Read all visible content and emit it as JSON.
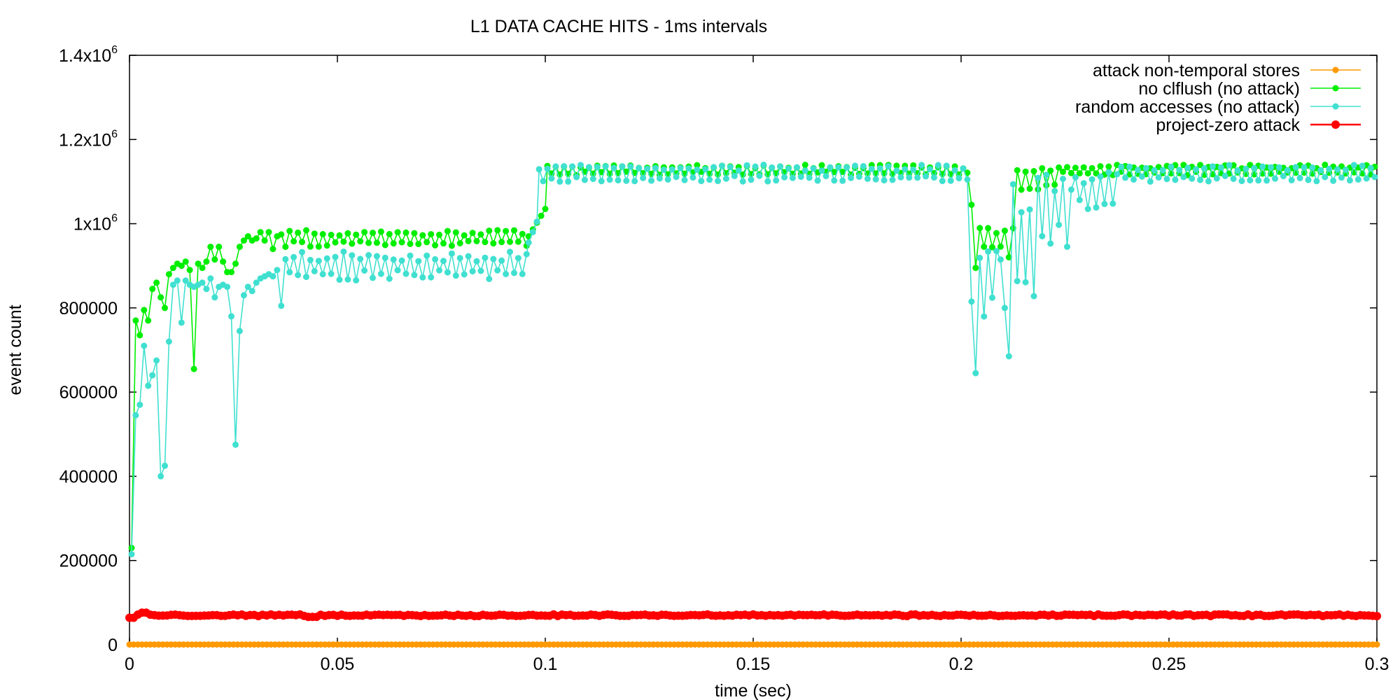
{
  "chart_data": {
    "type": "line",
    "title": "L1 DATA CACHE HITS - 1ms intervals",
    "xlabel": "time (sec)",
    "ylabel": "event count",
    "xlim": [
      0,
      0.3
    ],
    "ylim": [
      0,
      1400000
    ],
    "x_ticks": [
      {
        "value": 0,
        "label": "0"
      },
      {
        "value": 0.05,
        "label": "0.05"
      },
      {
        "value": 0.1,
        "label": "0.1"
      },
      {
        "value": 0.15,
        "label": "0.15"
      },
      {
        "value": 0.2,
        "label": "0.2"
      },
      {
        "value": 0.25,
        "label": "0.25"
      },
      {
        "value": 0.3,
        "label": "0.3"
      }
    ],
    "y_ticks": [
      {
        "value": 0,
        "label": "0"
      },
      {
        "value": 200000,
        "label": "200000"
      },
      {
        "value": 400000,
        "label": "400000"
      },
      {
        "value": 600000,
        "label": "600000"
      },
      {
        "value": 800000,
        "label": "800000"
      },
      {
        "value": 1000000,
        "label": "1x10",
        "sup": "6"
      },
      {
        "value": 1200000,
        "label": "1.2x10",
        "sup": "6"
      },
      {
        "value": 1400000,
        "label": "1.4x10",
        "sup": "6"
      }
    ],
    "grid": false,
    "legend_position": "top-right",
    "series": [
      {
        "name": "attack non-temporal stores",
        "color": "#ff9900",
        "marker_size": "small",
        "x_start": 0,
        "x_step": 0.001,
        "count": 301,
        "pattern": "constant",
        "base": 500
      },
      {
        "name": "no clflush (no attack)",
        "color": "#00ee00",
        "marker_size": "small",
        "points": [
          [
            0.0005,
            230000
          ],
          [
            0.0015,
            770000
          ],
          [
            0.0025,
            735000
          ],
          [
            0.0035,
            795000
          ],
          [
            0.0045,
            770000
          ],
          [
            0.0055,
            845000
          ],
          [
            0.0065,
            860000
          ],
          [
            0.0075,
            825000
          ],
          [
            0.0085,
            800000
          ],
          [
            0.0095,
            880000
          ],
          [
            0.0105,
            895000
          ],
          [
            0.0115,
            905000
          ],
          [
            0.0125,
            900000
          ],
          [
            0.0135,
            910000
          ],
          [
            0.0145,
            890000
          ],
          [
            0.0155,
            655000
          ],
          [
            0.0165,
            905000
          ],
          [
            0.0175,
            895000
          ],
          [
            0.0185,
            910000
          ],
          [
            0.0195,
            945000
          ],
          [
            0.0205,
            915000
          ],
          [
            0.0215,
            945000
          ],
          [
            0.0225,
            910000
          ],
          [
            0.0235,
            885000
          ],
          [
            0.0245,
            885000
          ],
          [
            0.0255,
            905000
          ],
          [
            0.0265,
            945000
          ],
          [
            0.0275,
            960000
          ],
          [
            0.0285,
            970000
          ],
          [
            0.0295,
            960000
          ],
          [
            0.0305,
            965000
          ],
          [
            0.0315,
            980000
          ],
          [
            0.0325,
            960000
          ],
          [
            0.0335,
            980000
          ],
          [
            0.0345,
            940000
          ],
          [
            0.0355,
            970000
          ]
        ],
        "pattern_after": {
          "x_from": 0.0365,
          "x_to": 0.3,
          "x_step": 0.001,
          "segments": [
            {
              "x_from": 0.0365,
              "x_to": 0.096,
              "low": 945000,
              "high": 985000
            },
            {
              "x_from": 0.096,
              "x_to": 0.1005,
              "ramp": [
                970000,
                1035000
              ]
            },
            {
              "x_from": 0.1005,
              "x_to": 0.2025,
              "low": 1115000,
              "high": 1140000
            },
            {
              "x_from": 0.2025,
              "x_to": 0.2045,
              "ramp": [
                1045000,
                895000
              ]
            },
            {
              "x_from": 0.2045,
              "x_to": 0.2135,
              "low": 915000,
              "high": 1005000
            },
            {
              "x_from": 0.2135,
              "x_to": 0.2235,
              "low": 1080000,
              "high": 1135000
            },
            {
              "x_from": 0.2235,
              "x_to": 0.3,
              "low": 1115000,
              "high": 1140000
            }
          ]
        }
      },
      {
        "name": "random accesses (no attack)",
        "color": "#40e0d0",
        "marker_size": "small",
        "points": [
          [
            0.0005,
            215000
          ],
          [
            0.0015,
            545000
          ],
          [
            0.0025,
            570000
          ],
          [
            0.0035,
            710000
          ],
          [
            0.0045,
            615000
          ],
          [
            0.0055,
            640000
          ],
          [
            0.0065,
            675000
          ],
          [
            0.0075,
            400000
          ],
          [
            0.0085,
            425000
          ],
          [
            0.0095,
            720000
          ],
          [
            0.0105,
            855000
          ],
          [
            0.0115,
            865000
          ],
          [
            0.0125,
            765000
          ],
          [
            0.0135,
            865000
          ],
          [
            0.0145,
            855000
          ],
          [
            0.0155,
            850000
          ],
          [
            0.0165,
            855000
          ],
          [
            0.0175,
            860000
          ],
          [
            0.0185,
            845000
          ],
          [
            0.0195,
            870000
          ],
          [
            0.0205,
            825000
          ],
          [
            0.0215,
            850000
          ],
          [
            0.0225,
            855000
          ],
          [
            0.0235,
            850000
          ],
          [
            0.0245,
            780000
          ],
          [
            0.0255,
            475000
          ],
          [
            0.0265,
            745000
          ],
          [
            0.0275,
            830000
          ],
          [
            0.0285,
            850000
          ],
          [
            0.0295,
            840000
          ],
          [
            0.0305,
            860000
          ],
          [
            0.0315,
            870000
          ],
          [
            0.0325,
            875000
          ],
          [
            0.0335,
            880000
          ],
          [
            0.0345,
            875000
          ],
          [
            0.0355,
            890000
          ],
          [
            0.0365,
            805000
          ]
        ],
        "pattern_after": {
          "x_from": 0.0375,
          "x_to": 0.3,
          "x_step": 0.001,
          "segments": [
            {
              "x_from": 0.0375,
              "x_to": 0.096,
              "low": 865000,
              "high": 935000
            },
            {
              "x_from": 0.096,
              "x_to": 0.0985,
              "ramp": [
                955000,
                1005000
              ]
            },
            {
              "x_from": 0.0985,
              "x_to": 0.2025,
              "low": 1100000,
              "high": 1140000
            },
            {
              "x_from": 0.2025,
              "x_to": 0.2045,
              "ramp": [
                815000,
                645000
              ]
            },
            {
              "x_from": 0.2045,
              "x_to": 0.2095,
              "low": 775000,
              "high": 935000
            },
            {
              "x_from": 0.2095,
              "x_to": 0.2125,
              "ramp": [
                915000,
                685000
              ]
            },
            {
              "x_from": 0.2125,
              "x_to": 0.2185,
              "low": 820000,
              "high": 1135000
            },
            {
              "x_from": 0.2185,
              "x_to": 0.2275,
              "low": 940000,
              "high": 1130000
            },
            {
              "x_from": 0.2275,
              "x_to": 0.2385,
              "low": 1030000,
              "high": 1125000
            },
            {
              "x_from": 0.2385,
              "x_to": 0.3,
              "low": 1100000,
              "high": 1140000
            }
          ]
        }
      },
      {
        "name": "project-zero attack",
        "color": "#ff0000",
        "marker_size": "large",
        "x_start": 0,
        "x_step": 0.001,
        "count": 301,
        "pattern": "band",
        "base": 70000,
        "low": 64000,
        "high": 76000
      }
    ]
  }
}
